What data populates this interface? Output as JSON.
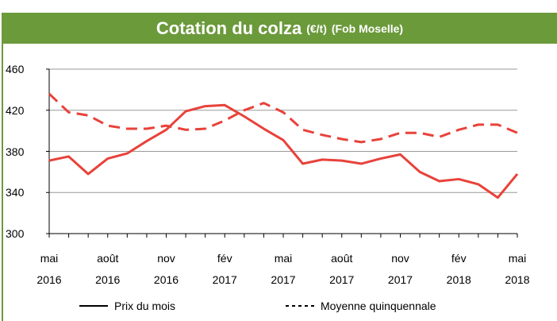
{
  "chart_data": {
    "type": "line",
    "title": "Cotation du colza",
    "title_unit": "(€/t)",
    "subtitle": "(Fob Moselle)",
    "categories": [
      "mai 2016",
      null,
      null,
      "août 2016",
      null,
      null,
      "nov 2016",
      null,
      null,
      "fév 2017",
      null,
      null,
      "mai 2017",
      null,
      null,
      "août 2017",
      null,
      null,
      "nov 2017",
      null,
      null,
      "fév 2018",
      null,
      null,
      "mai 2018"
    ],
    "series": [
      {
        "name": "Prix du mois",
        "color": "#e8423a",
        "dashed": false,
        "values": [
          371,
          375,
          358,
          373,
          378,
          390,
          401,
          419,
          424,
          425,
          414,
          402,
          391,
          368,
          372,
          371,
          368,
          373,
          377,
          360,
          351,
          353,
          348,
          335,
          358
        ]
      },
      {
        "name": "Moyenne quinquennale",
        "color": "#e8423a",
        "dashed": true,
        "values": [
          436,
          418,
          415,
          405,
          402,
          402,
          405,
          401,
          402,
          410,
          420,
          427,
          418,
          401,
          396,
          392,
          389,
          392,
          398,
          398,
          394,
          401,
          406,
          406,
          398
        ]
      }
    ],
    "ylim": [
      300,
      460
    ],
    "yticks": [
      300,
      340,
      380,
      420,
      460
    ],
    "grid": true
  }
}
